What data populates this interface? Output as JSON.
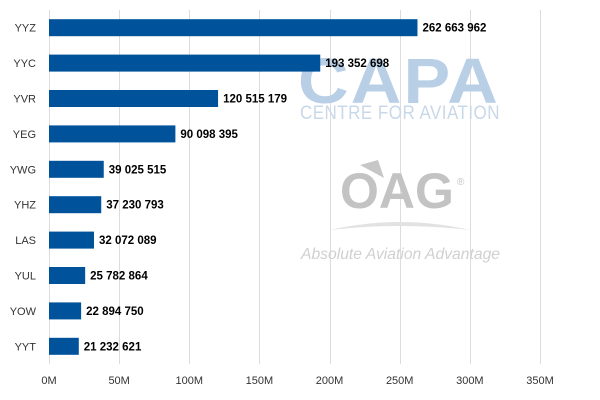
{
  "chart_data": {
    "type": "bar",
    "orientation": "horizontal",
    "categories": [
      "YYZ",
      "YYC",
      "YVR",
      "YEG",
      "YWG",
      "YHZ",
      "LAS",
      "YUL",
      "YOW",
      "YYT"
    ],
    "values": [
      262663962,
      193352698,
      120515179,
      90098395,
      39025515,
      37230793,
      32072089,
      25782864,
      22894750,
      21232621
    ],
    "data_labels": [
      "262 663 962",
      "193 352 698",
      "120 515 179",
      "90 098 395",
      "39 025 515",
      "37 230 793",
      "32 072 089",
      "25 782 864",
      "22 894 750",
      "21 232 621"
    ],
    "x_ticks": [
      0,
      50000000,
      100000000,
      150000000,
      200000000,
      250000000,
      300000000,
      350000000
    ],
    "x_tick_labels": [
      "0M",
      "50M",
      "100M",
      "150M",
      "200M",
      "250M",
      "300M",
      "350M"
    ],
    "xlim": [
      0,
      350000000
    ],
    "grid": true,
    "bar_color": "#00529b",
    "grid_color": "#dcdcdc",
    "title": "",
    "xlabel": "",
    "ylabel": ""
  },
  "watermarks": {
    "capa_logo": "CAPA",
    "capa_subtitle": "CENTRE FOR AVIATION",
    "oag_logo": "OAG",
    "oag_registered": "®",
    "oag_tagline": "Absolute Aviation Advantage"
  }
}
